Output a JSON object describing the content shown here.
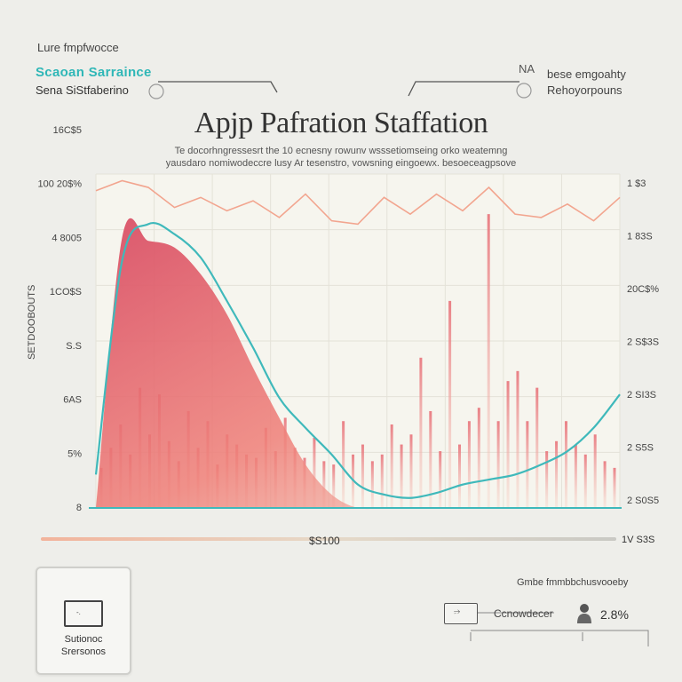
{
  "header": {
    "top_note": "Lure fmpfwocce",
    "title": "Apjp Pafration Staffation",
    "subtitle_line1": "Te docorhngressesrt the 10 ecnesny rowunv wsssetiomseing orko weatemng",
    "subtitle_line2": "yausdaro nomiwodeccre lusy Ar tesenstro, vowsning eingoewx. besoeceagpsove"
  },
  "legend": {
    "left_series_label": "Scaoan Sarraince",
    "left_series_sub": "Sena SiStfaberino",
    "right_series_label": "bese emgoahty",
    "right_series_sub": "Rehoyorpouns",
    "right_marker": "NA"
  },
  "axes": {
    "y_left_ticks": [
      "16C$5",
      "100 20$%",
      "4 8005",
      "1CO$S",
      "S.S",
      "6AS",
      "5%",
      "8"
    ],
    "y_left_title": "SETDOOBOUTS",
    "y_right_ticks": [
      "1 $3",
      "1 83S",
      "20C$%",
      "2 S$3S",
      "2 SI3S",
      "2 S5S",
      "2 S0S5"
    ],
    "x_label": "$S100",
    "x_right": "1V S3S"
  },
  "footer": {
    "card_line1": "Sutionoc",
    "card_line2": "Srersonos",
    "card_icon_text": "-.",
    "note": "Gmbe fmmbbchusvooeby",
    "item_label": "Ccnowdecer",
    "item_icon_text": "⭌",
    "item_pct": "2.8%"
  },
  "colors": {
    "teal": "#3fb9bb",
    "red": "#e0616b",
    "salmon": "#f2a58f",
    "panel": "#f6f5ee"
  },
  "chart_data": {
    "type": "area",
    "x": [
      0,
      1,
      2,
      3,
      4,
      5,
      6,
      7,
      8,
      9,
      10,
      11,
      12,
      13,
      14,
      15,
      16,
      17,
      18,
      19,
      20
    ],
    "series": [
      {
        "name": "Scaoan Sarraince",
        "kind": "teal-line",
        "values": [
          1.0,
          7.4,
          8.5,
          8.2,
          7.5,
          6.2,
          4.8,
          3.3,
          2.4,
          1.6,
          0.7,
          0.4,
          0.3,
          0.45,
          0.7,
          0.85,
          1.0,
          1.3,
          1.7,
          2.4,
          3.4
        ]
      },
      {
        "name": "Sena SiStfaberino",
        "kind": "red-area",
        "values": [
          0.0,
          8.1,
          8.0,
          7.8,
          7.0,
          5.8,
          4.2,
          2.7,
          1.3,
          0.4,
          0.0,
          0.0,
          0.0,
          0.0,
          0.0,
          0.0,
          0.0,
          0.0,
          0.0,
          0.0,
          0.0
        ]
      },
      {
        "name": "bese emgoahty",
        "kind": "salmon-line",
        "values": [
          9.5,
          9.8,
          9.6,
          9.0,
          9.3,
          8.9,
          9.2,
          8.7,
          9.4,
          8.6,
          8.5,
          9.3,
          8.8,
          9.4,
          8.9,
          9.6,
          8.8,
          8.7,
          9.1,
          8.6,
          9.3
        ]
      }
    ],
    "spikes": [
      1.2,
      1.8,
      2.5,
      1.6,
      3.6,
      2.2,
      3.4,
      2.0,
      1.4,
      2.9,
      1.8,
      2.6,
      1.3,
      2.2,
      1.9,
      1.6,
      1.5,
      2.4,
      1.7,
      2.7,
      1.8,
      1.5,
      2.1,
      1.4,
      1.3,
      2.6,
      1.6,
      1.9,
      1.4,
      1.6,
      2.5,
      1.9,
      2.2,
      4.5,
      2.9,
      1.7,
      6.2,
      1.9,
      2.6,
      3.0,
      8.8,
      2.6,
      3.8,
      4.1,
      2.6,
      3.6,
      1.7,
      2.0,
      2.6,
      1.9,
      1.6,
      2.2,
      1.4,
      1.2
    ],
    "ylim": [
      0,
      10
    ],
    "grid": true,
    "legend_position": "top"
  }
}
